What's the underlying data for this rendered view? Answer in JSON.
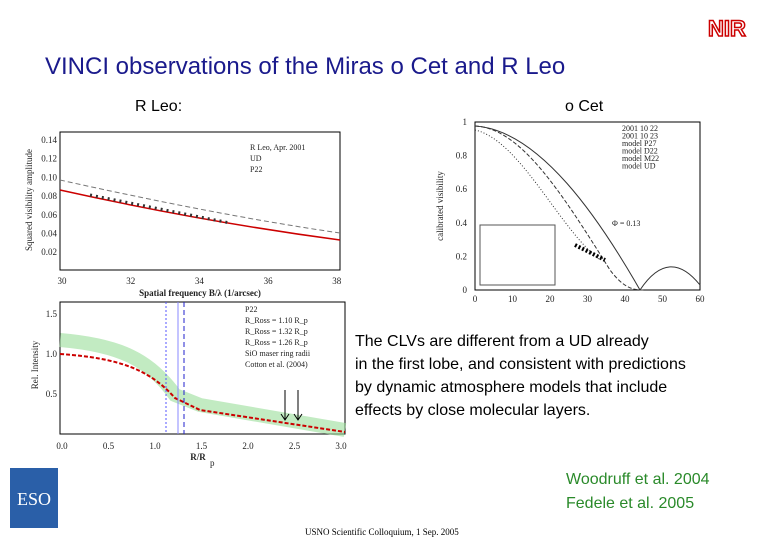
{
  "slide": {
    "logo": "NIR",
    "title": "VINCI  observations of the Miras o Cet and R Leo",
    "left_label": "R Leo:",
    "right_label": "o Cet",
    "fig_rleo_vis": {
      "ylabel": "Squared visibility amplitude",
      "xlabel": "Spatial frequency B/λ (1/arcsec)",
      "yticks": [
        "0.14",
        "0.12",
        "0.10",
        "0.08",
        "0.06",
        "0.04",
        "0.02"
      ],
      "xticks": [
        "30",
        "32",
        "34",
        "36",
        "38"
      ],
      "legend": [
        "R Leo, Apr. 2001",
        "UD",
        "P22"
      ]
    },
    "fig_rleo_clv": {
      "ylabel": "Rel. Intensity",
      "xlabel": "R/R",
      "xlabel_sub": "p",
      "yticks": [
        "1.5",
        "1.0",
        "0.5"
      ],
      "xticks": [
        "0.0",
        "0.5",
        "1.0",
        "1.5",
        "2.0",
        "2.5",
        "3.0"
      ],
      "legend": [
        "P22",
        "R_Ross = 1.10 R_p",
        "R_Ross = 1.32 R_p",
        "R_Ross = 1.26 R_p",
        "SiO maser ring radii",
        "Cotton et al. (2004)"
      ]
    },
    "fig_ocet": {
      "ylabel": "calibrated visibility",
      "yticks": [
        "1",
        "0.8",
        "0.6",
        "0.4",
        "0.2",
        "0"
      ],
      "xticks": [
        "0",
        "10",
        "20",
        "30",
        "40",
        "50",
        "60"
      ],
      "legend": [
        "2001 10 22",
        "2001 10 23",
        "model P27",
        "model D22",
        "model M22",
        "model UD"
      ],
      "phase": "Φ = 0.13"
    },
    "body": [
      "The CLVs are different from a UD already",
      "in the first lobe, and consistent with predictions",
      "by dynamic atmosphere models that include",
      "effects by close molecular layers."
    ],
    "references": [
      "Woodruff et al. 2004",
      "Fedele et al. 2005"
    ],
    "eso_logo": "ESO",
    "footer": "USNO Scientific Colloquium, 1 Sep. 2005"
  }
}
